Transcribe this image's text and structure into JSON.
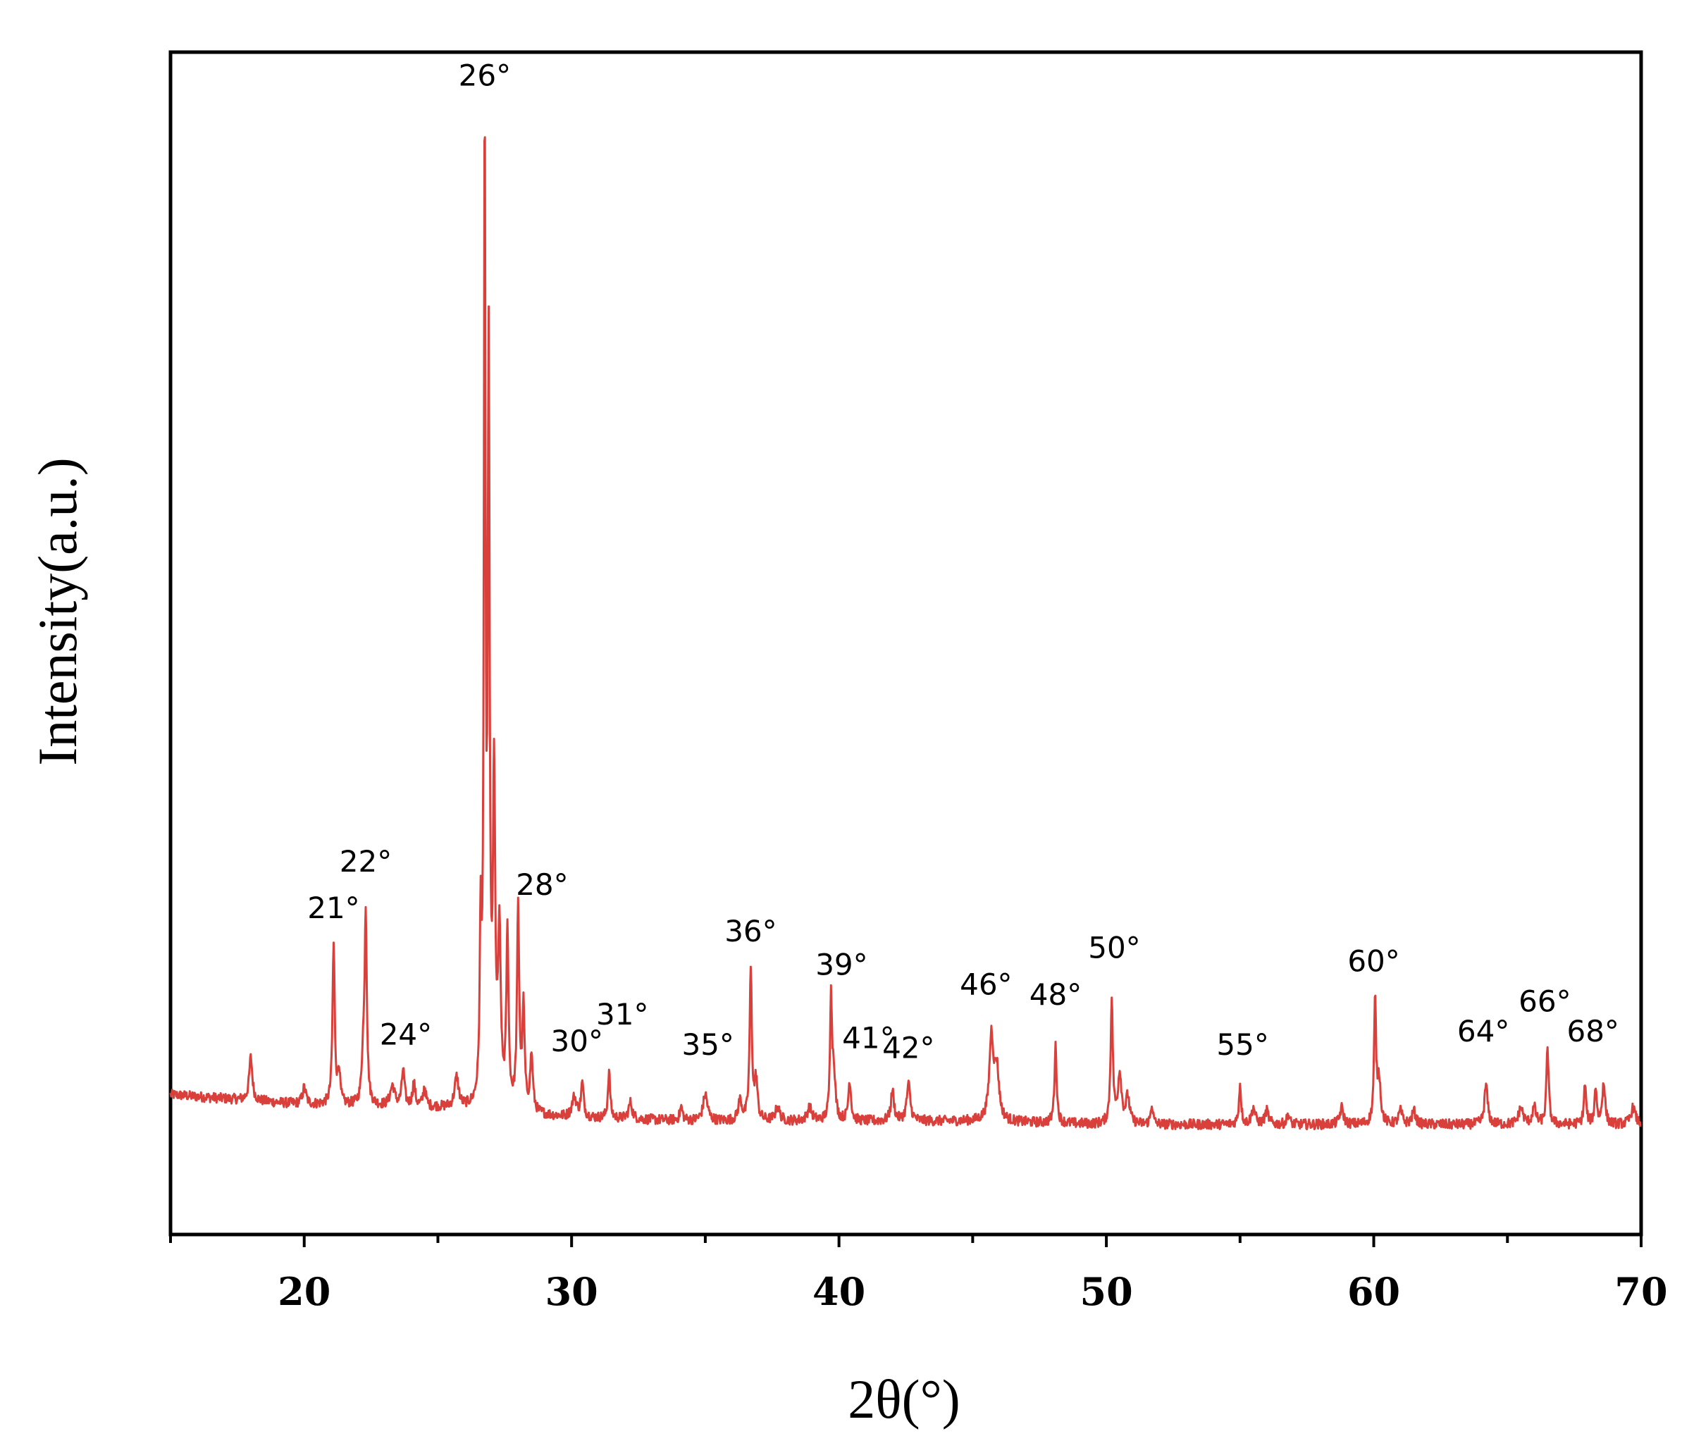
{
  "chart_data": {
    "type": "line",
    "title": "",
    "xlabel": "2θ(°)",
    "ylabel": "Intensity(a.u.)",
    "xlim": [
      15,
      70
    ],
    "ylim": [
      -0.35,
      3.2
    ],
    "x_ticks": [
      20,
      30,
      40,
      50,
      60,
      70
    ],
    "grid": false,
    "legend": "none",
    "colors": {
      "line": "#d9403b",
      "axes": "#000000"
    },
    "series": [
      {
        "baseline": [
          [
            15,
            0.07
          ],
          [
            20,
            0.04
          ],
          [
            25,
            0.03
          ],
          [
            30,
            0.0
          ],
          [
            35,
            -0.01
          ],
          [
            40,
            -0.01
          ],
          [
            45,
            -0.01
          ],
          [
            50,
            -0.02
          ],
          [
            55,
            -0.02
          ],
          [
            60,
            -0.02
          ],
          [
            65,
            -0.02
          ],
          [
            70,
            -0.02
          ]
        ],
        "peaks": [
          [
            18.0,
            0.13,
            0.07
          ],
          [
            20.0,
            0.05,
            0.08
          ],
          [
            21.1,
            0.48,
            0.05
          ],
          [
            21.3,
            0.1,
            0.05
          ],
          [
            22.3,
            0.57,
            0.05
          ],
          [
            22.2,
            0.12,
            0.06
          ],
          [
            23.3,
            0.06,
            0.1
          ],
          [
            23.7,
            0.11,
            0.06
          ],
          [
            24.1,
            0.07,
            0.06
          ],
          [
            24.5,
            0.06,
            0.06
          ],
          [
            25.7,
            0.09,
            0.09
          ],
          [
            26.6,
            0.5,
            0.04
          ],
          [
            26.75,
            2.93,
            0.035
          ],
          [
            26.9,
            2.2,
            0.04
          ],
          [
            27.1,
            0.95,
            0.05
          ],
          [
            27.3,
            0.5,
            0.06
          ],
          [
            27.6,
            0.52,
            0.05
          ],
          [
            28.0,
            0.6,
            0.05
          ],
          [
            28.2,
            0.3,
            0.05
          ],
          [
            28.5,
            0.17,
            0.06
          ],
          [
            30.1,
            0.06,
            0.1
          ],
          [
            30.4,
            0.1,
            0.06
          ],
          [
            31.4,
            0.14,
            0.05
          ],
          [
            32.2,
            0.05,
            0.08
          ],
          [
            34.1,
            0.04,
            0.06
          ],
          [
            35.0,
            0.08,
            0.1
          ],
          [
            36.3,
            0.06,
            0.08
          ],
          [
            36.7,
            0.45,
            0.05
          ],
          [
            36.9,
            0.12,
            0.06
          ],
          [
            37.7,
            0.04,
            0.1
          ],
          [
            38.9,
            0.04,
            0.1
          ],
          [
            39.7,
            0.37,
            0.04
          ],
          [
            39.8,
            0.15,
            0.07
          ],
          [
            40.4,
            0.12,
            0.06
          ],
          [
            42.0,
            0.09,
            0.07
          ],
          [
            42.6,
            0.11,
            0.08
          ],
          [
            45.7,
            0.25,
            0.09
          ],
          [
            45.9,
            0.15,
            0.1
          ],
          [
            48.1,
            0.23,
            0.05
          ],
          [
            50.2,
            0.37,
            0.05
          ],
          [
            50.5,
            0.15,
            0.08
          ],
          [
            50.8,
            0.08,
            0.08
          ],
          [
            51.7,
            0.06,
            0.05
          ],
          [
            55.0,
            0.12,
            0.05
          ],
          [
            55.5,
            0.05,
            0.08
          ],
          [
            56.0,
            0.04,
            0.08
          ],
          [
            56.8,
            0.03,
            0.06
          ],
          [
            58.8,
            0.05,
            0.08
          ],
          [
            60.05,
            0.37,
            0.045
          ],
          [
            60.2,
            0.13,
            0.07
          ],
          [
            61.0,
            0.04,
            0.08
          ],
          [
            61.5,
            0.04,
            0.08
          ],
          [
            64.2,
            0.12,
            0.07
          ],
          [
            65.5,
            0.05,
            0.1
          ],
          [
            66.0,
            0.05,
            0.08
          ],
          [
            66.5,
            0.23,
            0.05
          ],
          [
            67.9,
            0.12,
            0.05
          ],
          [
            68.3,
            0.11,
            0.05
          ],
          [
            68.6,
            0.13,
            0.06
          ],
          [
            69.7,
            0.05,
            0.1
          ]
        ]
      }
    ],
    "annotations": [
      {
        "text": "21°",
        "x": 21.1,
        "y": 0.6
      },
      {
        "text": "22°",
        "x": 22.3,
        "y": 0.74
      },
      {
        "text": "24°",
        "x": 23.8,
        "y": 0.22
      },
      {
        "text": "26°",
        "x": 26.75,
        "y": 3.1
      },
      {
        "text": "28°",
        "x": 28.9,
        "y": 0.67
      },
      {
        "text": "30°",
        "x": 30.2,
        "y": 0.2
      },
      {
        "text": "31°",
        "x": 31.9,
        "y": 0.28
      },
      {
        "text": "35°",
        "x": 35.1,
        "y": 0.19
      },
      {
        "text": "36°",
        "x": 36.7,
        "y": 0.53
      },
      {
        "text": "39°",
        "x": 40.1,
        "y": 0.43
      },
      {
        "text": "41°",
        "x": 41.1,
        "y": 0.21
      },
      {
        "text": "42°",
        "x": 42.6,
        "y": 0.18
      },
      {
        "text": "46°",
        "x": 45.5,
        "y": 0.37
      },
      {
        "text": "48°",
        "x": 48.1,
        "y": 0.34
      },
      {
        "text": "50°",
        "x": 50.3,
        "y": 0.48
      },
      {
        "text": "55°",
        "x": 55.1,
        "y": 0.19
      },
      {
        "text": "60°",
        "x": 60.0,
        "y": 0.44
      },
      {
        "text": "64°",
        "x": 64.1,
        "y": 0.23
      },
      {
        "text": "66°",
        "x": 66.4,
        "y": 0.32
      },
      {
        "text": "68°",
        "x": 68.2,
        "y": 0.23
      }
    ]
  }
}
